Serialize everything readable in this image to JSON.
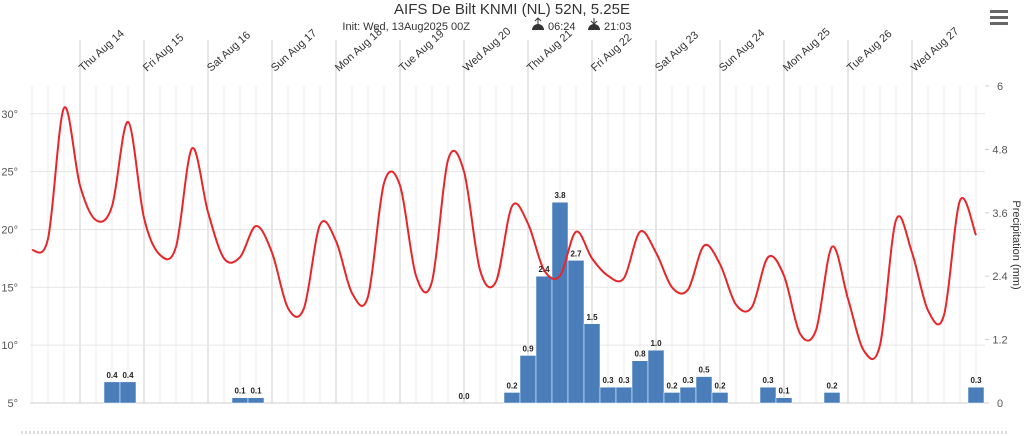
{
  "chart_data": {
    "type": "combo",
    "title": "AIFS De Bilt KNMI (NL) 52N, 5.25E",
    "subtitle": "Init: Wed, 13Aug2025 00Z",
    "sunrise": "06:24",
    "sunset": "21:03",
    "y2_label": "Precipitation (mm)",
    "grid": true,
    "categories": [
      null,
      null,
      null,
      "Thu Aug 14",
      null,
      null,
      null,
      "Fri Aug 15",
      null,
      null,
      null,
      "Sat Aug 16",
      null,
      null,
      null,
      "Sun Aug 17",
      null,
      null,
      null,
      "Mon Aug 18",
      null,
      null,
      null,
      "Tue Aug 19",
      null,
      null,
      null,
      "Wed Aug 20",
      null,
      null,
      null,
      "Thu Aug 21",
      null,
      null,
      null,
      "Fri Aug 22",
      null,
      null,
      null,
      "Sat Aug 23",
      null,
      null,
      null,
      "Sun Aug 24",
      null,
      null,
      null,
      "Mon Aug 25",
      null,
      null,
      null,
      "Tue Aug 26",
      null,
      null,
      null,
      "Wed Aug 27",
      null,
      null,
      null,
      null
    ],
    "ylim": [
      5,
      32.4
    ],
    "yticks": [
      {
        "value": 5,
        "label": "5°"
      },
      {
        "value": 10,
        "label": "10°"
      },
      {
        "value": 15,
        "label": "15°"
      },
      {
        "value": 20,
        "label": "20°"
      },
      {
        "value": 25,
        "label": "25°"
      },
      {
        "value": 30,
        "label": "30°"
      }
    ],
    "y2lim": [
      0,
      6
    ],
    "y2ticks": [
      0,
      1.2,
      2.4,
      3.6,
      4.8,
      6
    ],
    "series": [
      {
        "type": "line",
        "color": "#e8262a",
        "values": [
          18.2,
          19.2,
          30.5,
          23.8,
          20.8,
          22,
          29.3,
          21,
          17.8,
          18.5,
          27,
          21.5,
          17.5,
          17.6,
          20.3,
          18,
          13.2,
          13.2,
          20.4,
          19,
          14.5,
          14.2,
          24,
          23.8,
          16,
          15.5,
          26,
          25,
          16.5,
          15.5,
          22,
          20.5,
          16.5,
          16,
          19.8,
          17.5,
          16,
          15.8,
          19.8,
          18,
          15,
          14.8,
          18.6,
          17,
          13.5,
          13.3,
          17.6,
          16,
          11,
          11.3,
          18.5,
          14,
          9.5,
          10,
          20.8,
          18,
          13,
          12.6,
          22.5,
          19.5
        ]
      },
      {
        "type": "bar",
        "axis": "y2",
        "color": "#4a7ebb",
        "values": [
          null,
          null,
          null,
          null,
          null,
          0.4,
          0.4,
          null,
          null,
          null,
          null,
          null,
          null,
          0.1,
          0.1,
          null,
          null,
          null,
          null,
          null,
          null,
          null,
          null,
          null,
          null,
          null,
          null,
          0,
          null,
          null,
          0.2,
          0.9,
          2.4,
          3.8,
          2.7,
          1.5,
          0.3,
          0.3,
          0.8,
          1,
          0.2,
          0.3,
          0.5,
          0.2,
          null,
          null,
          0.3,
          0.1,
          null,
          null,
          0.2,
          null,
          null,
          null,
          null,
          null,
          null,
          null,
          null,
          0.3
        ],
        "value_labels": [
          null,
          null,
          null,
          null,
          null,
          "0.4",
          "0.4",
          null,
          null,
          null,
          null,
          null,
          null,
          "0.1",
          "0.1",
          null,
          null,
          null,
          null,
          null,
          null,
          null,
          null,
          null,
          null,
          null,
          null,
          "0.0",
          null,
          null,
          "0.2",
          "0.9",
          "2.4",
          "3.8",
          "2.7",
          "1.5",
          "0.3",
          "0.3",
          "0.8",
          "1.0",
          "0.2",
          "0.3",
          "0.5",
          "0.2",
          null,
          null,
          "0.3",
          "0.1",
          null,
          null,
          "0.2",
          null,
          null,
          null,
          null,
          null,
          null,
          null,
          null,
          "0.3"
        ]
      }
    ]
  }
}
